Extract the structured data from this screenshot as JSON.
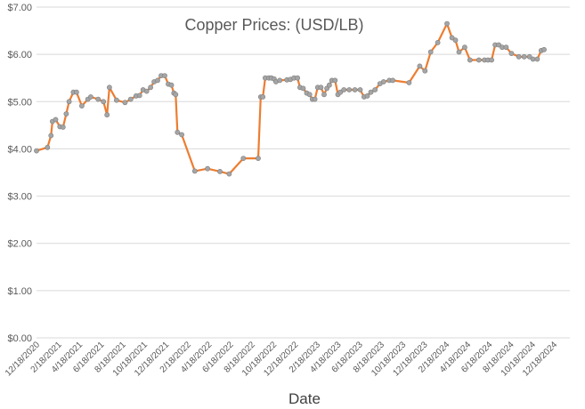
{
  "chart_data": {
    "type": "line",
    "title": "Copper Prices: (USD/LB)",
    "xlabel": "Date",
    "ylabel": "",
    "ylim": [
      0,
      7
    ],
    "grid": true,
    "legend": "none",
    "y_ticks": [
      "$0.00",
      "$1.00",
      "$2.00",
      "$3.00",
      "$4.00",
      "$5.00",
      "$6.00",
      "$7.00"
    ],
    "x_ticks": [
      "12/18/2020",
      "2/18/2021",
      "4/18/2021",
      "6/18/2021",
      "8/18/2021",
      "10/18/2021",
      "12/18/2021",
      "2/18/2022",
      "4/18/2022",
      "6/18/2022",
      "8/18/2022",
      "10/18/2022",
      "12/18/2022",
      "2/18/2023",
      "4/18/2023",
      "6/18/2023",
      "8/18/2023",
      "10/18/2023",
      "12/18/2023",
      "2/18/2024",
      "4/18/2024",
      "6/18/2024",
      "8/18/2024",
      "10/18/2024",
      "12/18/2024"
    ],
    "x_start": "2020-12-18",
    "x_end": "2025-02-01",
    "colors": {
      "line": "#ed7d31",
      "marker_fill": "#a5a5a5",
      "marker_stroke": "#7f7f7f"
    },
    "series": [
      {
        "points": [
          [
            "2020-12-18",
            3.96
          ],
          [
            "2021-01-18",
            4.03
          ],
          [
            "2021-01-28",
            4.28
          ],
          [
            "2021-02-01",
            4.58
          ],
          [
            "2021-02-10",
            4.62
          ],
          [
            "2021-02-22",
            4.47
          ],
          [
            "2021-03-03",
            4.46
          ],
          [
            "2021-03-12",
            4.74
          ],
          [
            "2021-03-20",
            5.0
          ],
          [
            "2021-04-01",
            5.2
          ],
          [
            "2021-04-10",
            5.2
          ],
          [
            "2021-04-25",
            4.91
          ],
          [
            "2021-05-12",
            5.05
          ],
          [
            "2021-05-20",
            5.1
          ],
          [
            "2021-06-10",
            5.05
          ],
          [
            "2021-06-25",
            5.0
          ],
          [
            "2021-07-05",
            4.72
          ],
          [
            "2021-07-12",
            5.3
          ],
          [
            "2021-08-01",
            5.03
          ],
          [
            "2021-08-25",
            4.98
          ],
          [
            "2021-09-10",
            5.05
          ],
          [
            "2021-09-25",
            5.12
          ],
          [
            "2021-10-05",
            5.13
          ],
          [
            "2021-10-15",
            5.25
          ],
          [
            "2021-10-25",
            5.22
          ],
          [
            "2021-11-05",
            5.3
          ],
          [
            "2021-11-15",
            5.42
          ],
          [
            "2021-11-25",
            5.45
          ],
          [
            "2021-12-05",
            5.55
          ],
          [
            "2021-12-15",
            5.55
          ],
          [
            "2021-12-25",
            5.37
          ],
          [
            "2022-01-03",
            5.35
          ],
          [
            "2022-01-10",
            5.18
          ],
          [
            "2022-01-15",
            5.15
          ],
          [
            "2022-01-20",
            4.35
          ],
          [
            "2022-02-01",
            4.3
          ],
          [
            "2022-03-10",
            3.53
          ],
          [
            "2022-04-15",
            3.58
          ],
          [
            "2022-05-20",
            3.52
          ],
          [
            "2022-06-15",
            3.47
          ],
          [
            "2022-07-25",
            3.8
          ],
          [
            "2022-09-05",
            3.8
          ],
          [
            "2022-09-12",
            5.1
          ],
          [
            "2022-09-18",
            5.1
          ],
          [
            "2022-09-25",
            5.5
          ],
          [
            "2022-10-05",
            5.5
          ],
          [
            "2022-10-12",
            5.5
          ],
          [
            "2022-10-20",
            5.48
          ],
          [
            "2022-10-25",
            5.42
          ],
          [
            "2022-11-05",
            5.45
          ],
          [
            "2022-11-25",
            5.46
          ],
          [
            "2022-12-05",
            5.47
          ],
          [
            "2022-12-15",
            5.5
          ],
          [
            "2022-12-25",
            5.5
          ],
          [
            "2023-01-01",
            5.3
          ],
          [
            "2023-01-10",
            5.28
          ],
          [
            "2023-01-20",
            5.18
          ],
          [
            "2023-01-28",
            5.15
          ],
          [
            "2023-02-05",
            5.05
          ],
          [
            "2023-02-12",
            5.05
          ],
          [
            "2023-02-20",
            5.3
          ],
          [
            "2023-03-01",
            5.3
          ],
          [
            "2023-03-10",
            5.15
          ],
          [
            "2023-03-18",
            5.28
          ],
          [
            "2023-03-25",
            5.35
          ],
          [
            "2023-04-01",
            5.45
          ],
          [
            "2023-04-10",
            5.45
          ],
          [
            "2023-04-18",
            5.15
          ],
          [
            "2023-04-25",
            5.2
          ],
          [
            "2023-05-05",
            5.25
          ],
          [
            "2023-05-20",
            5.25
          ],
          [
            "2023-06-05",
            5.25
          ],
          [
            "2023-06-20",
            5.25
          ],
          [
            "2023-07-01",
            5.1
          ],
          [
            "2023-07-10",
            5.12
          ],
          [
            "2023-07-20",
            5.2
          ],
          [
            "2023-08-01",
            5.25
          ],
          [
            "2023-08-15",
            5.38
          ],
          [
            "2023-08-25",
            5.42
          ],
          [
            "2023-09-10",
            5.45
          ],
          [
            "2023-09-20",
            5.45
          ],
          [
            "2023-11-05",
            5.4
          ],
          [
            "2023-12-05",
            5.75
          ],
          [
            "2023-12-20",
            5.65
          ],
          [
            "2024-01-05",
            6.05
          ],
          [
            "2024-01-25",
            6.25
          ],
          [
            "2024-02-20",
            6.65
          ],
          [
            "2024-03-05",
            6.35
          ],
          [
            "2024-03-15",
            6.3
          ],
          [
            "2024-03-25",
            6.05
          ],
          [
            "2024-04-10",
            6.15
          ],
          [
            "2024-04-25",
            5.88
          ],
          [
            "2024-05-20",
            5.88
          ],
          [
            "2024-06-05",
            5.88
          ],
          [
            "2024-06-15",
            5.88
          ],
          [
            "2024-06-25",
            5.88
          ],
          [
            "2024-07-05",
            6.2
          ],
          [
            "2024-07-15",
            6.2
          ],
          [
            "2024-07-25",
            6.15
          ],
          [
            "2024-08-05",
            6.15
          ],
          [
            "2024-08-20",
            6.02
          ],
          [
            "2024-09-10",
            5.95
          ],
          [
            "2024-09-25",
            5.95
          ],
          [
            "2024-10-10",
            5.95
          ],
          [
            "2024-10-20",
            5.9
          ],
          [
            "2024-11-01",
            5.9
          ],
          [
            "2024-11-12",
            6.08
          ],
          [
            "2024-11-20",
            6.1
          ]
        ]
      }
    ]
  }
}
